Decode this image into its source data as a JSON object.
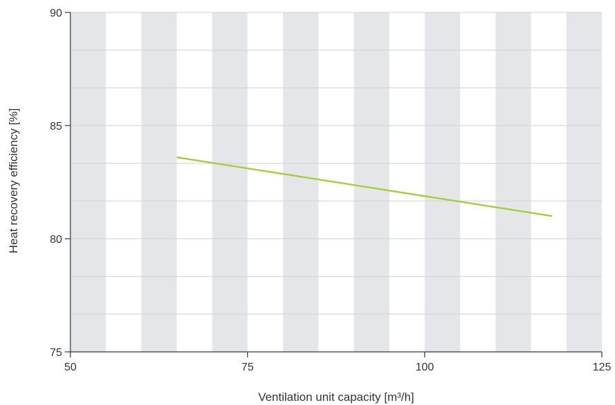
{
  "chart_data": {
    "type": "line",
    "title": "",
    "xlabel": "Ventilation unit capacity [m³/h]",
    "ylabel": "Heat recovery efficiency [%]",
    "xlim": [
      50,
      125
    ],
    "ylim": [
      75,
      90
    ],
    "x_ticks": [
      {
        "value": 50,
        "label": "50"
      },
      {
        "value": 75,
        "label": "75"
      },
      {
        "value": 100,
        "label": "100"
      },
      {
        "value": 125,
        "label": "125"
      }
    ],
    "y_ticks": [
      {
        "value": 75,
        "label": "75"
      },
      {
        "value": 80,
        "label": "80"
      },
      {
        "value": 85,
        "label": "85"
      },
      {
        "value": 90,
        "label": "90"
      }
    ],
    "minor_y_gridlines": [
      76.67,
      78.33,
      81.67,
      83.33,
      86.67,
      88.33
    ],
    "background_bands": {
      "start": 50,
      "width": 5,
      "period": 10,
      "color": "#e5e6e8"
    },
    "grid": true,
    "legend": "none",
    "series": [
      {
        "color": "#a5cd3c",
        "x": [
          65,
          118
        ],
        "y": [
          83.6,
          81.0
        ]
      }
    ]
  }
}
